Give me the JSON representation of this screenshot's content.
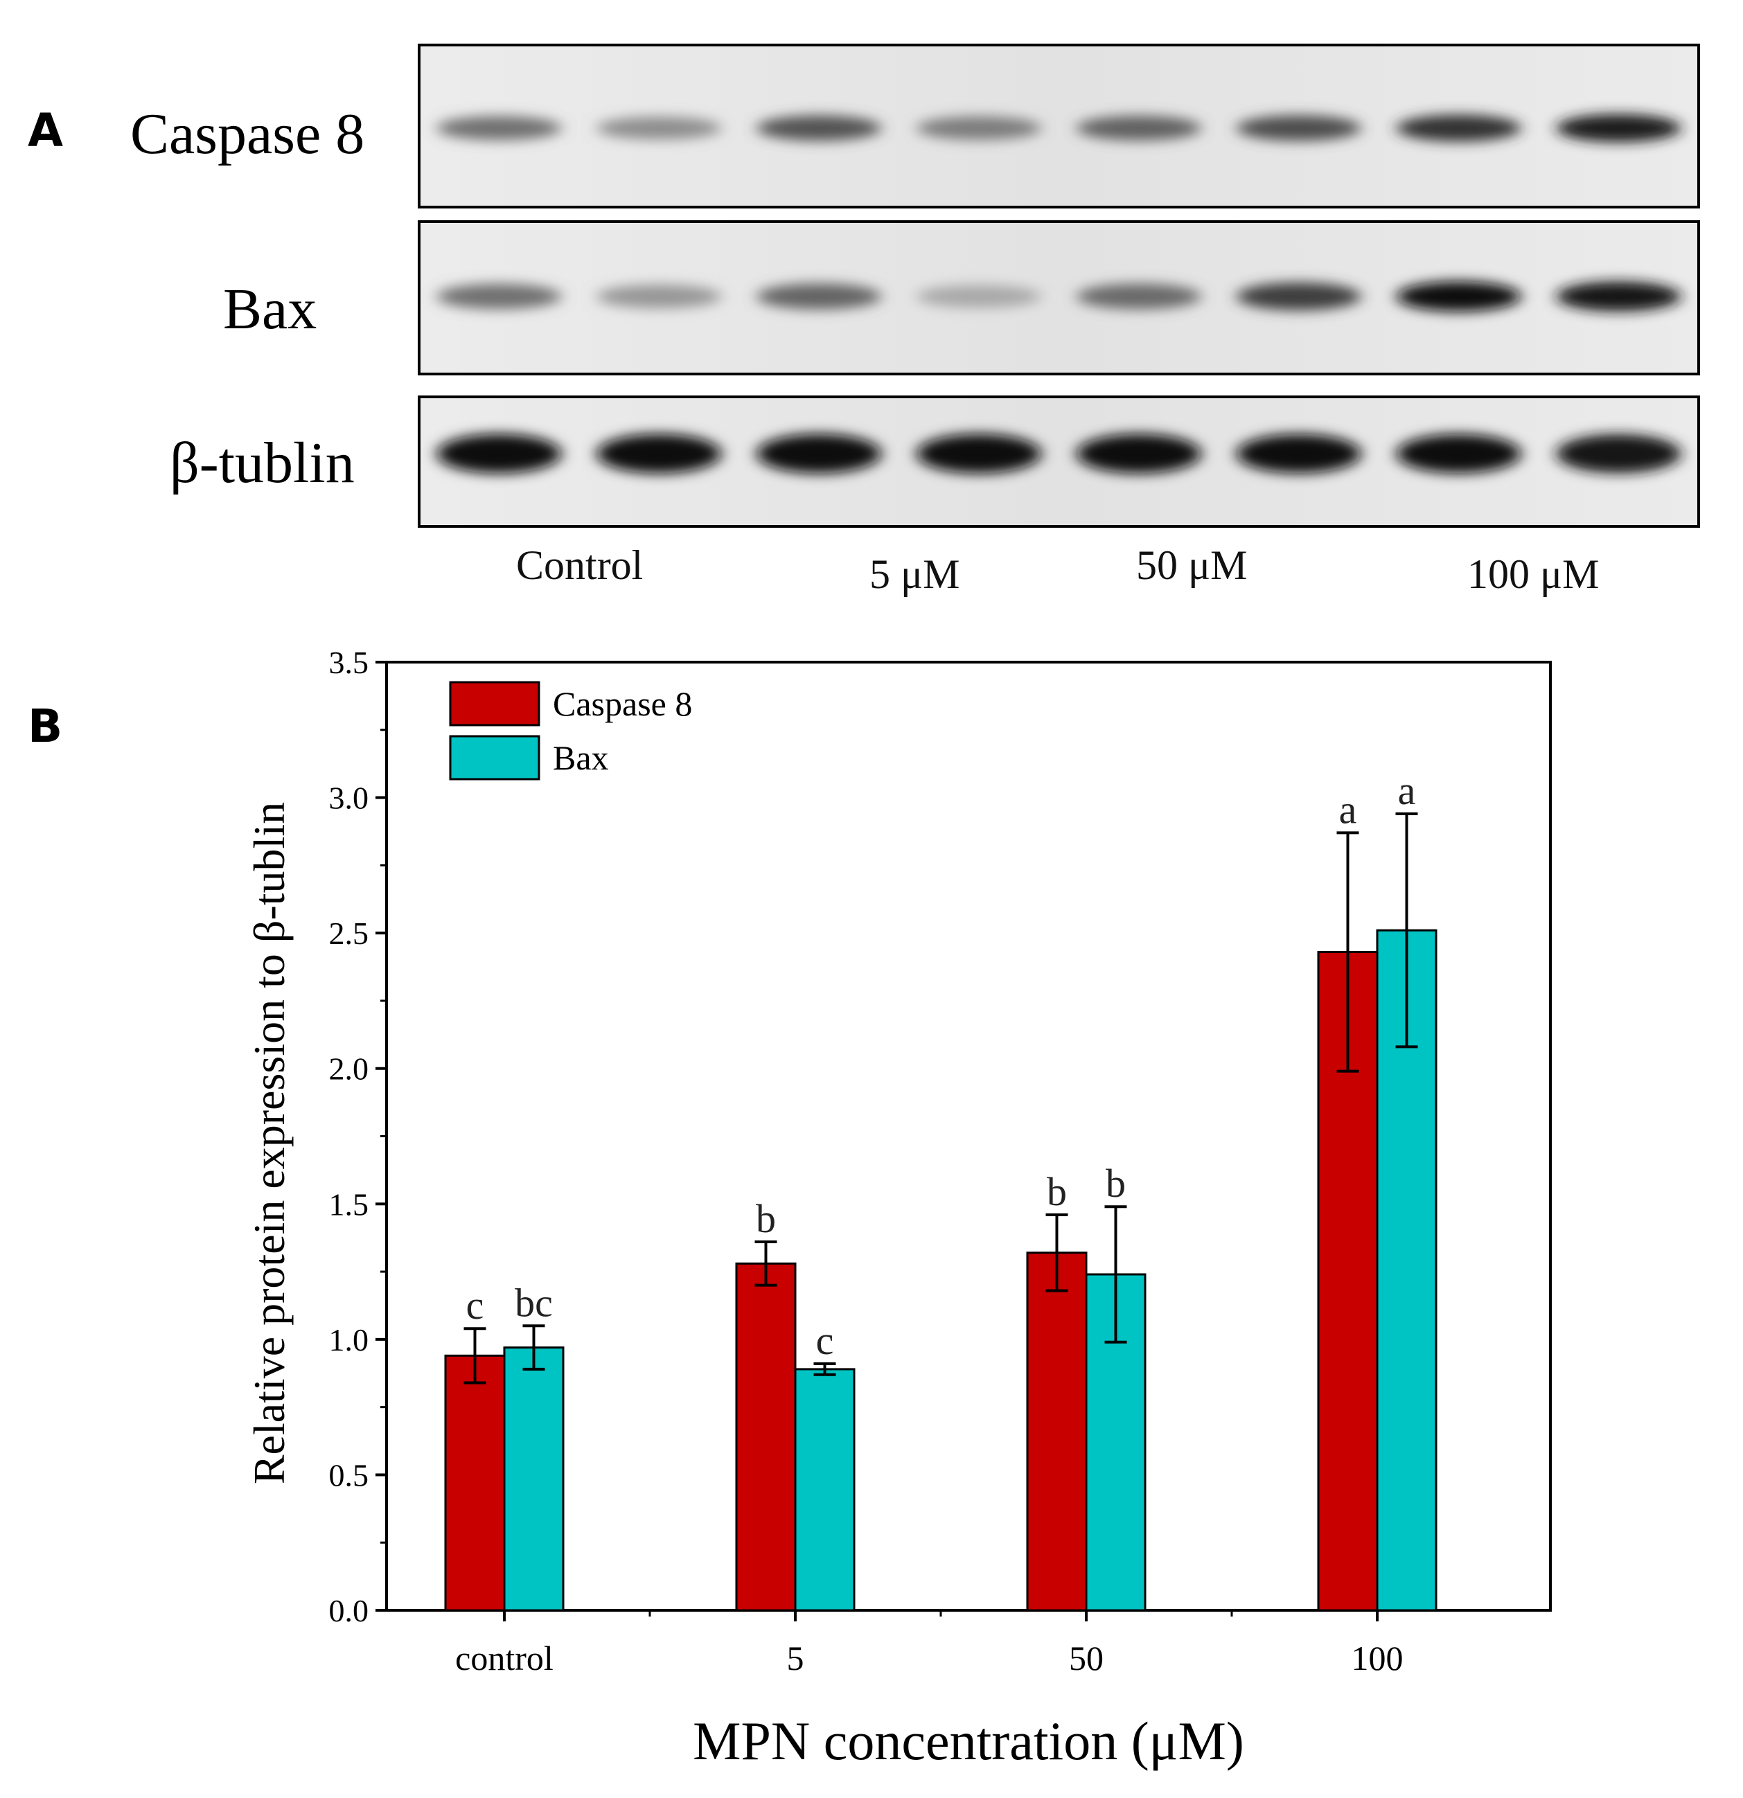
{
  "panel_a": {
    "label": "A",
    "blots": [
      {
        "name": "Caspase 8",
        "intensities": [
          0.55,
          0.42,
          0.68,
          0.5,
          0.62,
          0.7,
          0.82,
          0.92
        ]
      },
      {
        "name": "Bax",
        "intensities": [
          0.55,
          0.38,
          0.6,
          0.3,
          0.58,
          0.78,
          0.98,
          0.95
        ]
      },
      {
        "name": "β-tublin",
        "intensities": [
          1.0,
          1.0,
          1.0,
          1.0,
          1.0,
          0.97,
          0.97,
          0.95
        ]
      }
    ],
    "lane_groups": [
      "Control",
      "5 μM",
      "50 μM",
      "100 μM"
    ]
  },
  "panel_b": {
    "label": "B"
  },
  "colors": {
    "caspase8": "#c80000",
    "bax": "#00c4c4",
    "axis": "#000000"
  },
  "chart_data": {
    "type": "bar",
    "title": "",
    "xlabel": "MPN concentration (μM)",
    "ylabel": "Relative protein expression to β-tublin",
    "categories": [
      "control",
      "5",
      "50",
      "100"
    ],
    "ylim": [
      0,
      3.5
    ],
    "yticks": [
      "0.0",
      "0.5",
      "1.0",
      "1.5",
      "2.0",
      "2.5",
      "3.0",
      "3.5"
    ],
    "legend_position": "top-left",
    "series": [
      {
        "name": "Caspase 8",
        "color": "#c80000",
        "values": [
          0.94,
          1.28,
          1.32,
          2.43
        ],
        "errors": [
          0.1,
          0.08,
          0.14,
          0.44
        ],
        "labels": [
          "c",
          "b",
          "b",
          "a"
        ]
      },
      {
        "name": "Bax",
        "color": "#00c4c4",
        "values": [
          0.97,
          0.89,
          1.24,
          2.51
        ],
        "errors": [
          0.08,
          0.02,
          0.25,
          0.43
        ],
        "labels": [
          "bc",
          "c",
          "b",
          "a"
        ]
      }
    ]
  }
}
